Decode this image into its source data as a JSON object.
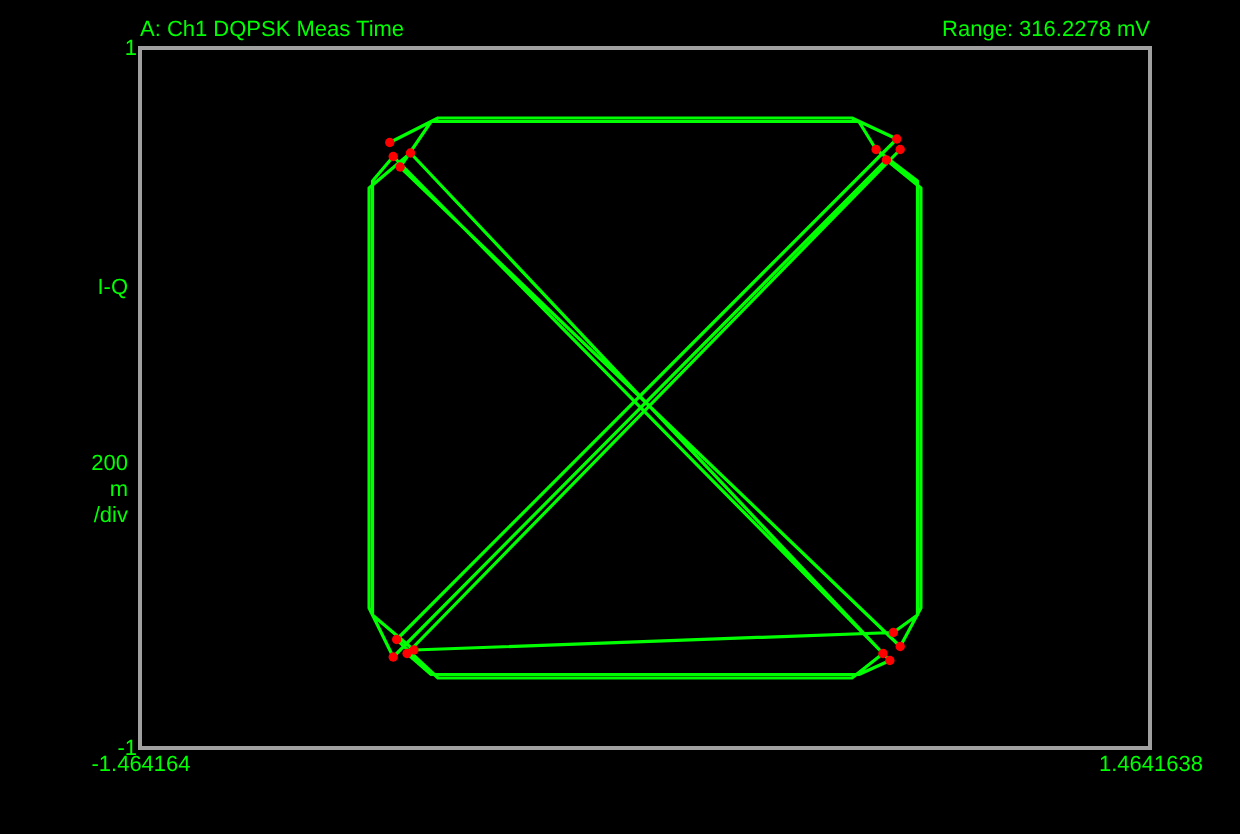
{
  "chart_data": {
    "type": "line",
    "title": "A: Ch1 DQPSK Meas Time",
    "ylabel": "I-Q",
    "annotations": [
      "Range: 316.2278 mV",
      "200 m /div"
    ],
    "xlim": [
      -1.464164,
      1.4641638
    ],
    "xticks": [
      -1.464164,
      1.4641638
    ],
    "ylim": [
      -1,
      1
    ],
    "yticks": [
      -1,
      1
    ],
    "grid": false,
    "series": [
      {
        "color": "#00ff00",
        "x": [
          -0.74,
          -0.6,
          0.6,
          0.73,
          -0.72,
          -0.6,
          0.6,
          0.69,
          -0.68,
          -0.8,
          -0.8,
          -0.73,
          0.7,
          0.8,
          0.8,
          0.74,
          -0.71,
          -0.62,
          0.62,
          0.67,
          0.79,
          0.79,
          0.72,
          -0.67,
          -0.79,
          -0.79,
          -0.73,
          0.71,
          0.62,
          -0.62,
          -0.69,
          0.74
        ],
        "values": [
          0.73,
          0.8,
          0.8,
          0.74,
          -0.69,
          -0.8,
          -0.8,
          -0.73,
          0.7,
          0.6,
          -0.6,
          -0.74,
          0.68,
          0.6,
          -0.6,
          -0.71,
          0.66,
          0.79,
          0.79,
          0.71,
          0.62,
          -0.62,
          -0.67,
          -0.72,
          -0.62,
          0.62,
          0.69,
          -0.75,
          -0.79,
          -0.79,
          -0.73,
          0.71
        ]
      },
      {
        "type": "scatter",
        "color": "#ff0000",
        "x": [
          -0.74,
          0.73,
          -0.72,
          0.69,
          -0.68,
          -0.73,
          0.7,
          0.74,
          -0.71,
          0.67,
          0.72,
          -0.67,
          -0.73,
          0.71,
          -0.69,
          0.74
        ],
        "values": [
          0.73,
          0.74,
          -0.69,
          -0.73,
          0.7,
          -0.74,
          0.68,
          -0.71,
          0.66,
          0.71,
          -0.67,
          -0.72,
          0.69,
          -0.75,
          -0.73,
          0.71
        ]
      }
    ]
  }
}
